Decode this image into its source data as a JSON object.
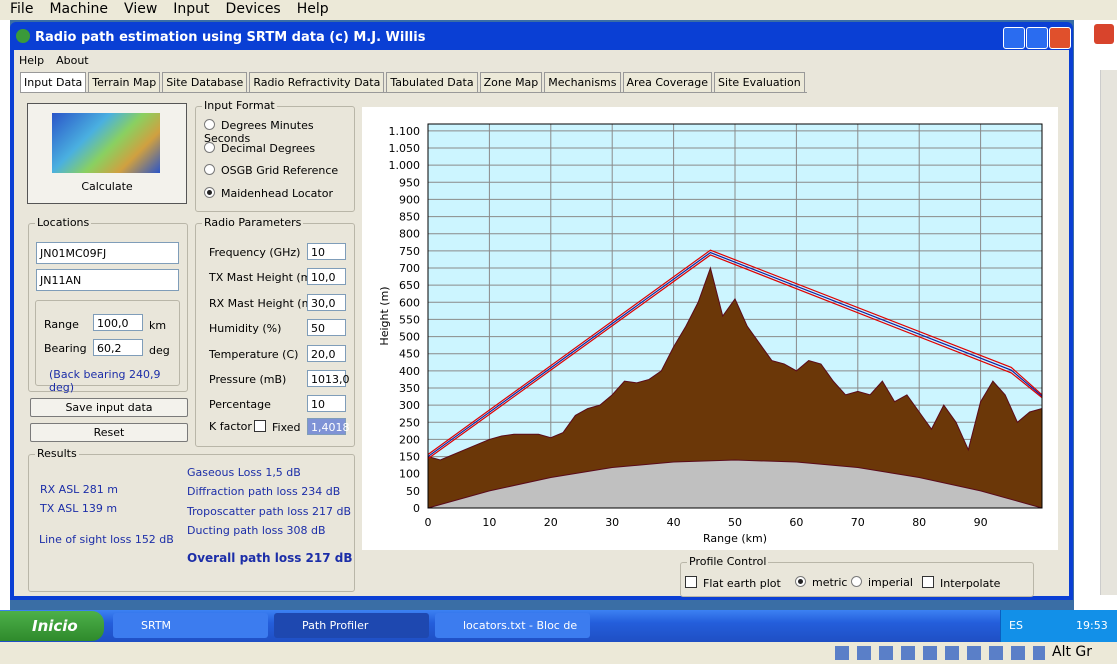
{
  "host_menu": [
    "File",
    "Machine",
    "View",
    "Input",
    "Devices",
    "Help"
  ],
  "window": {
    "title": "Radio path estimation using SRTM data (c) M.J. Willis",
    "menu": [
      "Help",
      "About"
    ],
    "tabs": [
      "Input Data",
      "Terrain Map",
      "Site Database",
      "Radio Refractivity Data",
      "Tabulated Data",
      "Zone Map",
      "Mechanisms",
      "Area Coverage",
      "Site Evaluation"
    ]
  },
  "calculate": "Calculate",
  "input_format": {
    "title": "Input Format",
    "options": [
      "Degrees Minutes Seconds",
      "Decimal Degrees",
      "OSGB Grid Reference",
      "Maidenhead Locator"
    ],
    "selected": 3
  },
  "locations": {
    "title": "Locations",
    "tx": "JN01MC09FJ",
    "rx": "JN11AN",
    "range_label": "Range",
    "range_value": "100,0",
    "range_unit": "km",
    "bearing_label": "Bearing",
    "bearing_value": "60,2",
    "bearing_unit": "deg",
    "back_bearing": "(Back bearing 240,9 deg)"
  },
  "buttons": [
    "Save input data",
    "Reset"
  ],
  "radio_parameters": {
    "title": "Radio Parameters",
    "rows": [
      {
        "label": "Frequency (GHz)",
        "value": "10"
      },
      {
        "label": "TX Mast Height (m)",
        "value": "10,0"
      },
      {
        "label": "RX Mast Height (m)",
        "value": "30,0"
      },
      {
        "label": "Humidity (%)",
        "value": "50"
      },
      {
        "label": "Temperature (C)",
        "value": "20,0"
      },
      {
        "label": "Pressure (mB)",
        "value": "1013,0"
      },
      {
        "label": "Percentage",
        "value": "10"
      }
    ],
    "k_factor": {
      "label": "K factor",
      "fixed": "Fixed",
      "value": "1,4018"
    }
  },
  "results": {
    "title": "Results",
    "rx_asl": "RX ASL 281 m",
    "tx_asl": "TX ASL 139 m",
    "los_loss": "Line of sight loss 152 dB",
    "gaseous": "Gaseous Loss 1,5 dB",
    "diffraction": "Diffraction path loss 234 dB",
    "troposcatter": "Troposcatter path loss 217 dB",
    "ducting": "Ducting path loss 308 dB",
    "overall": "Overall path loss 217 dB"
  },
  "profile_chart": {
    "type": "area",
    "xlabel": "Range (km)",
    "ylabel": "Height (m)",
    "xlim": [
      0,
      100
    ],
    "ylim": [
      0,
      1120
    ],
    "grid": true,
    "xticks": [
      0,
      10,
      20,
      30,
      40,
      50,
      60,
      70,
      80,
      90
    ],
    "yticks": [
      0,
      50,
      100,
      150,
      200,
      250,
      300,
      350,
      400,
      450,
      500,
      550,
      600,
      650,
      700,
      750,
      800,
      850,
      900,
      950,
      {
        "value": 1000,
        "label": "1.000"
      },
      {
        "value": 1050,
        "label": "1.050"
      },
      {
        "value": 1100,
        "label": "1.100"
      }
    ],
    "series": [
      {
        "type": "area",
        "color": "#6b3708",
        "x": [
          0,
          2,
          4,
          6,
          8,
          10,
          12,
          14,
          16,
          18,
          20,
          22,
          24,
          26,
          28,
          30,
          32,
          34,
          36,
          38,
          40,
          42,
          44,
          46,
          48,
          50,
          52,
          54,
          56,
          58,
          60,
          62,
          64,
          66,
          68,
          70,
          72,
          74,
          76,
          78,
          80,
          82,
          84,
          86,
          88,
          90,
          92,
          94,
          96,
          98,
          100
        ],
        "values": [
          150,
          140,
          155,
          170,
          185,
          200,
          210,
          215,
          215,
          215,
          205,
          220,
          270,
          290,
          300,
          330,
          370,
          365,
          375,
          400,
          470,
          530,
          600,
          700,
          560,
          610,
          530,
          480,
          430,
          420,
          400,
          430,
          420,
          370,
          330,
          340,
          330,
          370,
          310,
          330,
          280,
          230,
          300,
          250,
          170,
          310,
          370,
          330,
          250,
          280,
          290
        ]
      },
      {
        "type": "area",
        "color": "#c0c0c0",
        "x": [
          0,
          10,
          20,
          30,
          40,
          50,
          60,
          70,
          80,
          90,
          100
        ],
        "values": [
          0,
          50,
          89,
          118,
          134,
          140,
          134,
          118,
          89,
          50,
          0
        ]
      },
      {
        "type": "line",
        "color": "#e00000",
        "x": [
          0,
          46,
          95,
          100
        ],
        "values": [
          156,
          752,
          410,
          330
        ]
      },
      {
        "type": "line",
        "color": "#1020a0",
        "x": [
          0,
          46,
          95,
          100
        ],
        "values": [
          150,
          745,
          402,
          326
        ]
      },
      {
        "type": "line",
        "color": "#e00000",
        "x": [
          0,
          46,
          95,
          100
        ],
        "values": [
          144,
          738,
          394,
          322
        ]
      }
    ]
  },
  "profile_control": {
    "title": "Profile Control",
    "flat_earth": "Flat earth plot",
    "metric": "metric",
    "imperial": "imperial",
    "interpolate": "Interpolate"
  },
  "taskbar": {
    "start": "Inicio",
    "items": [
      "SRTM",
      "Path Profiler",
      "locators.txt - Bloc de ..."
    ],
    "active": 1,
    "lang": "ES",
    "clock": "19:53"
  },
  "altgr": "Alt Gr"
}
